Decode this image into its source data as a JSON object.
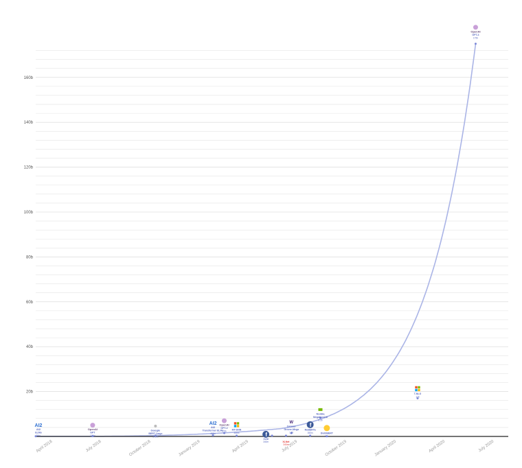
{
  "chart_data": {
    "type": "scatter",
    "title": "",
    "xlabel": "",
    "ylabel": "",
    "x_ticks": [
      "April 2018",
      "July 2018",
      "October 2018",
      "January 2019",
      "April 2019",
      "July 2019",
      "October 2019",
      "January 2020",
      "April 2020",
      "July 2020"
    ],
    "y_ticks": [
      "20b",
      "40b",
      "60b",
      "80b",
      "100b",
      "120b",
      "140b",
      "160b"
    ],
    "ylim": [
      0,
      175
    ],
    "grid": true,
    "colors": {
      "trend": "#aab4e6",
      "marker": "#7b88d8",
      "label": "#5c6bc0",
      "grid": "#e3e3e3",
      "axis": "#222222",
      "red": "#e53935"
    },
    "points": [
      {
        "date": "2018-03-01",
        "value": 0.094,
        "org": "AI2",
        "name": "ELMo",
        "size": "94m",
        "logo": "ai2"
      },
      {
        "date": "2018-06-15",
        "value": 0.11,
        "org": "OpenAI",
        "name": "GPT",
        "size": "110m",
        "logo": "openai"
      },
      {
        "date": "2018-10-10",
        "value": 0.34,
        "org": "Google",
        "name": "BERT-Large",
        "size": "340m",
        "logo": "google"
      },
      {
        "date": "2019-01-25",
        "value": 0.465,
        "org": "AI2",
        "name": "Transformer ELMo",
        "size": "465m",
        "logo": "ai2"
      },
      {
        "date": "2019-02-15",
        "value": 1.5,
        "org": "OpenAI",
        "name": "GPT-2",
        "size": "1.5b",
        "logo": "openai"
      },
      {
        "date": "2019-03-10",
        "value": 0.33,
        "org": "",
        "name": "MT-DNN",
        "size": "330m",
        "logo": "microsoft"
      },
      {
        "date": "2019-05-15",
        "value": 0.34,
        "org": "",
        "name": "XLM",
        "size": "340m",
        "logo": "facebook"
      },
      {
        "date": "2019-06-10",
        "value": 0.335,
        "org": "",
        "name": "XLNet",
        "size": "340m",
        "logo": ""
      },
      {
        "date": "2019-06-20",
        "value": 1.5,
        "org": "Grover",
        "name": "Grover-Mega",
        "size": "1.5b",
        "logo": "w"
      },
      {
        "date": "2019-07-25",
        "value": 0.355,
        "org": "",
        "name": "RoBERTa",
        "size": "355m",
        "logo": "facebook"
      },
      {
        "date": "2019-08-13",
        "value": 8.3,
        "org": "Nvidia",
        "name": "MegatronLM",
        "size": "8.3b",
        "logo": "nvidia"
      },
      {
        "date": "2019-08-25",
        "value": 0.066,
        "org": "",
        "name": "DistilBERT",
        "size": "66m",
        "logo": "huggingface"
      },
      {
        "date": "2020-02-10",
        "value": 17,
        "org": "",
        "name": "T-NLG",
        "size": "17b",
        "logo": "microsoft"
      },
      {
        "date": "2020-05-28",
        "value": 175,
        "org": "OpenAI",
        "name": "GPT-3",
        "size": "175b",
        "logo": "openai"
      }
    ]
  }
}
